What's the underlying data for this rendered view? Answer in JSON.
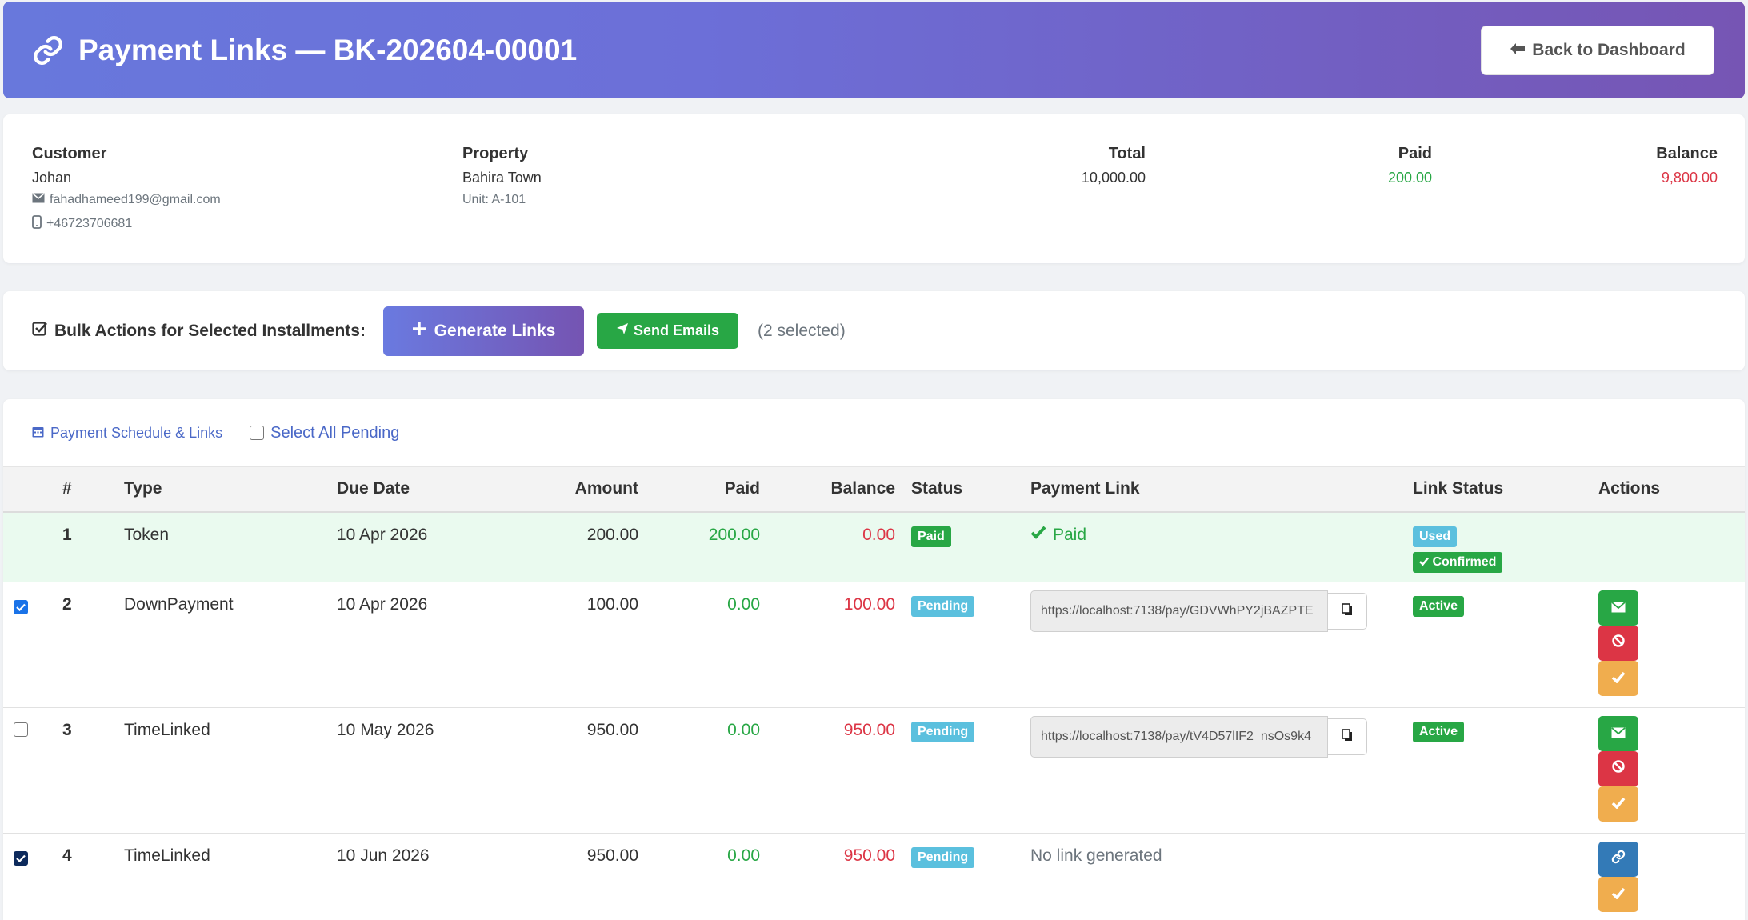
{
  "header": {
    "title": "Payment Links — BK-202604-00001",
    "back_label": "Back to Dashboard"
  },
  "customer": {
    "label": "Customer",
    "name": "Johan",
    "email": "fahadhameed199@gmail.com",
    "phone": "+46723706681"
  },
  "property": {
    "label": "Property",
    "name": "Bahira Town",
    "unit": "Unit: A-101"
  },
  "totals": {
    "total_label": "Total",
    "total": "10,000.00",
    "paid_label": "Paid",
    "paid": "200.00",
    "balance_label": "Balance",
    "balance": "9,800.00"
  },
  "bulk": {
    "label": "Bulk Actions for Selected Installments:",
    "generate_label": "Generate Links",
    "send_label": "Send Emails",
    "selected_text": "(2 selected)"
  },
  "schedule": {
    "title": "Payment Schedule & Links",
    "select_all_label": "Select All Pending",
    "columns": [
      "#",
      "Type",
      "Due Date",
      "Amount",
      "Paid",
      "Balance",
      "Status",
      "Payment Link",
      "Link Status",
      "Actions"
    ],
    "rows": [
      {
        "num": "1",
        "type": "Token",
        "due": "10 Apr 2026",
        "amount": "200.00",
        "paid": "200.00",
        "balance": "0.00",
        "status": "Paid",
        "link_text": "Paid",
        "link_status": "Used",
        "link_status2": "Confirmed"
      },
      {
        "num": "2",
        "type": "DownPayment",
        "due": "10 Apr 2026",
        "amount": "100.00",
        "paid": "0.00",
        "balance": "100.00",
        "status": "Pending",
        "link": "https://localhost:7138/pay/GDVWhPY2jBAZPTE",
        "link_status": "Active"
      },
      {
        "num": "3",
        "type": "TimeLinked",
        "due": "10 May 2026",
        "amount": "950.00",
        "paid": "0.00",
        "balance": "950.00",
        "status": "Pending",
        "link": "https://localhost:7138/pay/tV4D57lIF2_nsOs9k4",
        "link_status": "Active"
      },
      {
        "num": "4",
        "type": "TimeLinked",
        "due": "10 Jun 2026",
        "amount": "950.00",
        "paid": "0.00",
        "balance": "950.00",
        "status": "Pending",
        "link_text": "No link generated"
      }
    ]
  },
  "colors": {
    "header_start": "#6878dc",
    "header_end": "#7655b4",
    "success": "#28a745",
    "danger": "#dc3545",
    "info": "#5bc0de",
    "warning": "#f0ad4e",
    "primary": "#337ab7"
  },
  "icons": {
    "title": "link-icon",
    "back": "arrow-left-icon",
    "email": "envelope-icon",
    "phone": "mobile-icon",
    "bulk": "check-square-icon",
    "generate": "plus-icon",
    "send": "paper-plane-icon",
    "schedule": "calendar-icon",
    "copy": "copy-icon",
    "cancel": "ban-icon",
    "confirm": "check-icon"
  }
}
